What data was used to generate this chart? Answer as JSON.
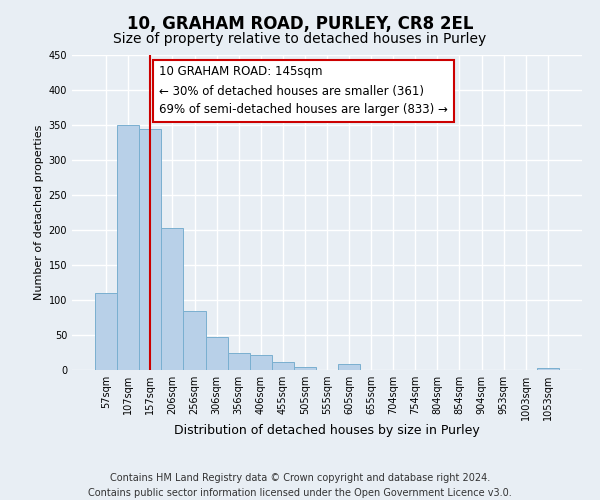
{
  "title": "10, GRAHAM ROAD, PURLEY, CR8 2EL",
  "subtitle": "Size of property relative to detached houses in Purley",
  "xlabel": "Distribution of detached houses by size in Purley",
  "ylabel": "Number of detached properties",
  "bin_labels": [
    "57sqm",
    "107sqm",
    "157sqm",
    "206sqm",
    "256sqm",
    "306sqm",
    "356sqm",
    "406sqm",
    "455sqm",
    "505sqm",
    "555sqm",
    "605sqm",
    "655sqm",
    "704sqm",
    "754sqm",
    "804sqm",
    "854sqm",
    "904sqm",
    "953sqm",
    "1003sqm",
    "1053sqm"
  ],
  "bar_values": [
    110,
    350,
    345,
    203,
    85,
    47,
    25,
    22,
    11,
    5,
    0,
    8,
    0,
    0,
    0,
    0,
    0,
    0,
    0,
    0,
    3
  ],
  "bar_color": "#b8d0e8",
  "bar_edge_color": "#7aafd0",
  "vline_x": 2,
  "vline_color": "#cc0000",
  "annotation_text": "10 GRAHAM ROAD: 145sqm\n← 30% of detached houses are smaller (361)\n69% of semi-detached houses are larger (833) →",
  "annotation_box_color": "#ffffff",
  "annotation_box_edge_color": "#cc0000",
  "ylim": [
    0,
    450
  ],
  "yticks": [
    0,
    50,
    100,
    150,
    200,
    250,
    300,
    350,
    400,
    450
  ],
  "footer_text": "Contains HM Land Registry data © Crown copyright and database right 2024.\nContains public sector information licensed under the Open Government Licence v3.0.",
  "background_color": "#e8eef4",
  "plot_background_color": "#e8eef4",
  "grid_color": "#ffffff",
  "title_fontsize": 12,
  "subtitle_fontsize": 10,
  "xlabel_fontsize": 9,
  "ylabel_fontsize": 8,
  "annotation_fontsize": 8.5,
  "footer_fontsize": 7,
  "tick_fontsize": 7
}
